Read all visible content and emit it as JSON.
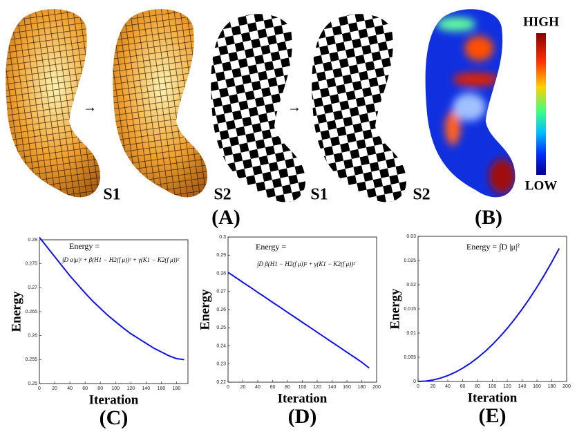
{
  "figure": {
    "surface_labels": [
      "S1",
      "S2",
      "S1",
      "S2"
    ],
    "panel_labels": [
      "(A)",
      "(B)"
    ],
    "colorbar": {
      "high": "HIGH",
      "low": "LOW"
    },
    "arrows": [
      "→",
      "→"
    ]
  },
  "chart_data": [
    {
      "type": "line",
      "panel_label": "(C)",
      "x_label": "Iteration",
      "y_label": "Energy",
      "annotation": [
        "Energy =",
        "∫D α|μ|² + β(H1 − H2(f μ))² + γ(K1 − K2(f μ))²"
      ],
      "xlim": [
        0,
        195
      ],
      "xticks": [
        0,
        20,
        40,
        60,
        80,
        100,
        120,
        140,
        160,
        180
      ],
      "ylim": [
        0.25,
        0.28
      ],
      "yticks": [
        0.25,
        0.255,
        0.26,
        0.265,
        0.27,
        0.275,
        0.28
      ],
      "x": [
        0,
        10,
        20,
        30,
        40,
        50,
        60,
        70,
        80,
        90,
        100,
        110,
        120,
        130,
        140,
        150,
        160,
        170,
        180,
        190
      ],
      "color": "#1010e0",
      "values": [
        0.2805,
        0.2785,
        0.2765,
        0.2745,
        0.2725,
        0.2707,
        0.2689,
        0.2672,
        0.2657,
        0.2642,
        0.2629,
        0.2616,
        0.2604,
        0.2594,
        0.2584,
        0.2574,
        0.2566,
        0.2558,
        0.2552,
        0.255
      ]
    },
    {
      "type": "line",
      "panel_label": "(D)",
      "x_label": "Iteration",
      "y_label": "Energy",
      "annotation": [
        "Energy =",
        "∫D β(H1 − H2(f μ))² + γ(K1 − K2(f μ))²"
      ],
      "xlim": [
        0,
        200
      ],
      "xticks": [
        0,
        20,
        40,
        60,
        80,
        100,
        120,
        140,
        160,
        180,
        200
      ],
      "ylim": [
        0.22,
        0.3
      ],
      "yticks": [
        0.22,
        0.23,
        0.24,
        0.25,
        0.26,
        0.27,
        0.28,
        0.29,
        0.3
      ],
      "x": [
        0,
        10,
        20,
        30,
        40,
        50,
        60,
        70,
        80,
        90,
        100,
        110,
        120,
        130,
        140,
        150,
        160,
        170,
        180,
        190
      ],
      "color": "#1010e0",
      "values": [
        0.2805,
        0.2778,
        0.275,
        0.2723,
        0.2695,
        0.2668,
        0.264,
        0.2613,
        0.2585,
        0.2558,
        0.253,
        0.2503,
        0.2475,
        0.2448,
        0.242,
        0.2393,
        0.2365,
        0.2338,
        0.231,
        0.2278
      ]
    },
    {
      "type": "line",
      "panel_label": "(E)",
      "x_label": "Iteration",
      "y_label": "Energy",
      "annotation": [
        "Energy = ∫D |μ|²"
      ],
      "xlim": [
        0,
        200
      ],
      "xticks": [
        0,
        20,
        40,
        60,
        80,
        100,
        120,
        140,
        160,
        180,
        200
      ],
      "ylim": [
        0,
        0.03
      ],
      "yticks": [
        0,
        0.005,
        0.01,
        0.015,
        0.02,
        0.025,
        0.03
      ],
      "x": [
        0,
        10,
        20,
        30,
        40,
        50,
        60,
        70,
        80,
        90,
        100,
        110,
        120,
        130,
        140,
        150,
        160,
        170,
        180,
        190
      ],
      "color": "#1010e0",
      "values": [
        0,
        8e-05,
        0.0003,
        0.00069,
        0.00122,
        0.0019,
        0.00274,
        0.00373,
        0.00488,
        0.00617,
        0.00762,
        0.00922,
        0.01097,
        0.01287,
        0.01493,
        0.01714,
        0.0195,
        0.02201,
        0.02468,
        0.0275
      ]
    }
  ]
}
